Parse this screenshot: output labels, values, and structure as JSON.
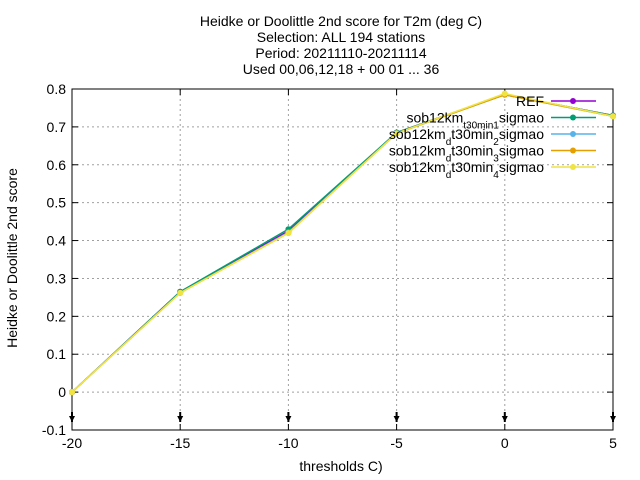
{
  "chart_data": {
    "type": "line",
    "title_lines": [
      "Heidke or Doolittle 2nd score  for T2m (deg C)",
      "Selection: ALL    194 stations",
      "Period: 20211110-20211114",
      "Used 00,06,12,18 + 00 01 ... 36"
    ],
    "xlabel": "thresholds C)",
    "ylabel": "Heidke or Doolittle 2nd score",
    "xlim": [
      -20,
      5
    ],
    "ylim": [
      -0.1,
      0.8
    ],
    "xticks": [
      "-20",
      "-15",
      "-10",
      "-5",
      "0",
      "5"
    ],
    "yticks": [
      "-0.1",
      "0",
      "0.1",
      "0.2",
      "0.3",
      "0.4",
      "0.5",
      "0.6",
      "0.7",
      "0.8"
    ],
    "grid": true,
    "legend_position": "top-right",
    "x": [
      -20,
      -15,
      -10,
      -5,
      0,
      5
    ],
    "series": [
      {
        "name": "REF",
        "color": "#9400d3",
        "values": [
          0.0,
          0.265,
          0.425,
          0.685,
          0.785,
          0.73
        ]
      },
      {
        "name": "sob12km_t30min_1_sigmao",
        "legend_parts": [
          [
            "sob12km",
            ""
          ],
          [
            "t30min",
            "sub"
          ],
          [
            "1",
            "sub"
          ],
          [
            "sigmao",
            ""
          ]
        ],
        "color": "#009e73",
        "values": [
          0.0,
          0.265,
          0.43,
          0.685,
          0.785,
          0.73
        ]
      },
      {
        "name": "sob12km_d_t30min_2_sigmao",
        "legend_parts": [
          [
            "sob12km",
            ""
          ],
          [
            "d",
            "sub"
          ],
          [
            "t30min",
            ""
          ],
          [
            "2",
            "sub"
          ],
          [
            "sigmao",
            ""
          ]
        ],
        "color": "#56b4e9",
        "values": [
          0.0,
          0.262,
          0.422,
          0.683,
          0.785,
          0.728
        ]
      },
      {
        "name": "sob12km_d_t30min_3_sigmao",
        "legend_parts": [
          [
            "sob12km",
            ""
          ],
          [
            "d",
            "sub"
          ],
          [
            "t30min",
            ""
          ],
          [
            "3",
            "sub"
          ],
          [
            "sigmao",
            ""
          ]
        ],
        "color": "#e69f00",
        "values": [
          0.0,
          0.262,
          0.42,
          0.683,
          0.785,
          0.728
        ]
      },
      {
        "name": "sob12km_d_t30min_4_sigmao",
        "legend_parts": [
          [
            "sob12km",
            ""
          ],
          [
            "d",
            "sub"
          ],
          [
            "t30min",
            ""
          ],
          [
            "4",
            "sub"
          ],
          [
            "sigmao",
            ""
          ]
        ],
        "color": "#f0e442",
        "values": [
          0.0,
          0.262,
          0.42,
          0.683,
          0.788,
          0.728
        ]
      }
    ]
  }
}
